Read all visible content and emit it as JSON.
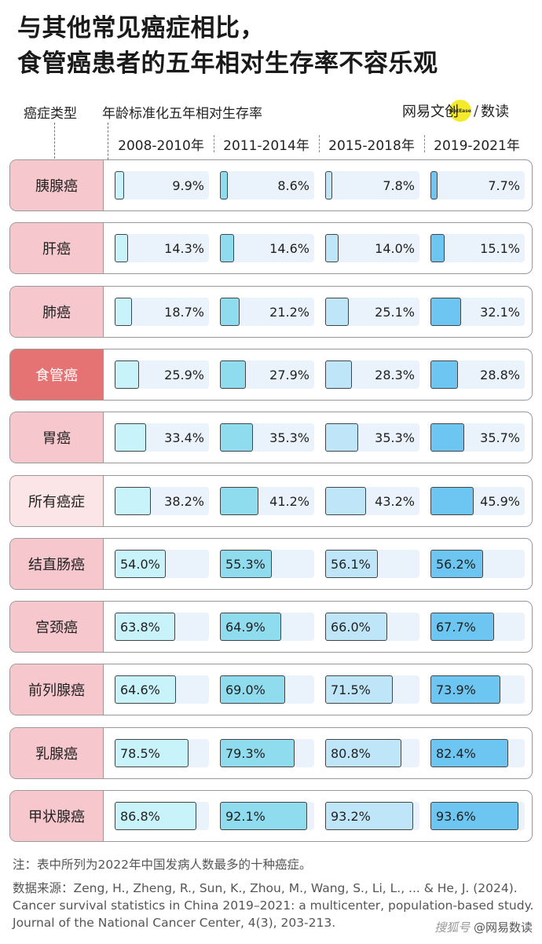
{
  "title": {
    "line1": "与其他常见癌症相比，",
    "line2": "食管癌患者的五年相对生存率不容乐观"
  },
  "header": {
    "type_label": "癌症类型",
    "rate_label": "年龄标准化五年相对生存率",
    "brand_main": "网易文创",
    "brand_dot": "NetEase",
    "brand_slash": "/",
    "brand_sub": "数读"
  },
  "colors": {
    "label_bg": "#f6c8cd",
    "highlight_label_bg": "#e57373",
    "all_label_bg": "#fbe5e6",
    "bar_2008": "#c9f3fa",
    "bar_2011": "#8fdcef",
    "bar_2015": "#bfe5f8",
    "bar_2019": "#6dc6f1",
    "cell_bg": "#eaf3fb"
  },
  "chart_data": {
    "type": "bar",
    "categories": [
      "胰腺癌",
      "肝癌",
      "肺癌",
      "食管癌",
      "胃癌",
      "所有癌症",
      "结直肠癌",
      "宫颈癌",
      "前列腺癌",
      "乳腺癌",
      "甲状腺癌"
    ],
    "highlight": "食管癌",
    "value_unit": "%",
    "ylim": [
      0,
      100
    ],
    "series": [
      {
        "name": "2008-2010年",
        "values": [
          9.9,
          14.3,
          18.7,
          25.9,
          33.4,
          38.2,
          54.0,
          63.8,
          64.6,
          78.5,
          86.8
        ]
      },
      {
        "name": "2011-2014年",
        "values": [
          8.6,
          14.6,
          21.2,
          27.9,
          35.3,
          41.2,
          55.3,
          64.9,
          69.0,
          79.3,
          92.1
        ]
      },
      {
        "name": "2015-2018年",
        "values": [
          7.8,
          14.0,
          25.1,
          28.3,
          35.3,
          43.2,
          56.1,
          66.0,
          71.5,
          80.8,
          93.2
        ]
      },
      {
        "name": "2019-2021年",
        "values": [
          7.7,
          15.1,
          32.1,
          28.8,
          35.7,
          45.9,
          56.2,
          67.7,
          73.9,
          82.4,
          93.6
        ]
      }
    ]
  },
  "footer": {
    "note": "注：表中所列为2022年中国发病人数最多的十种癌症。",
    "source": "数据来源：Zeng, H., Zheng, R., Sun, K., Zhou, M., Wang, S., Li, L., ... & He, J. (2024). Cancer survival statistics in China 2019–2021: a multicenter, population-based study. Journal of the National Cancer Center, 4(3), 203-213."
  },
  "watermark": {
    "platform": "搜狐号",
    "handle": "@网易数读"
  }
}
